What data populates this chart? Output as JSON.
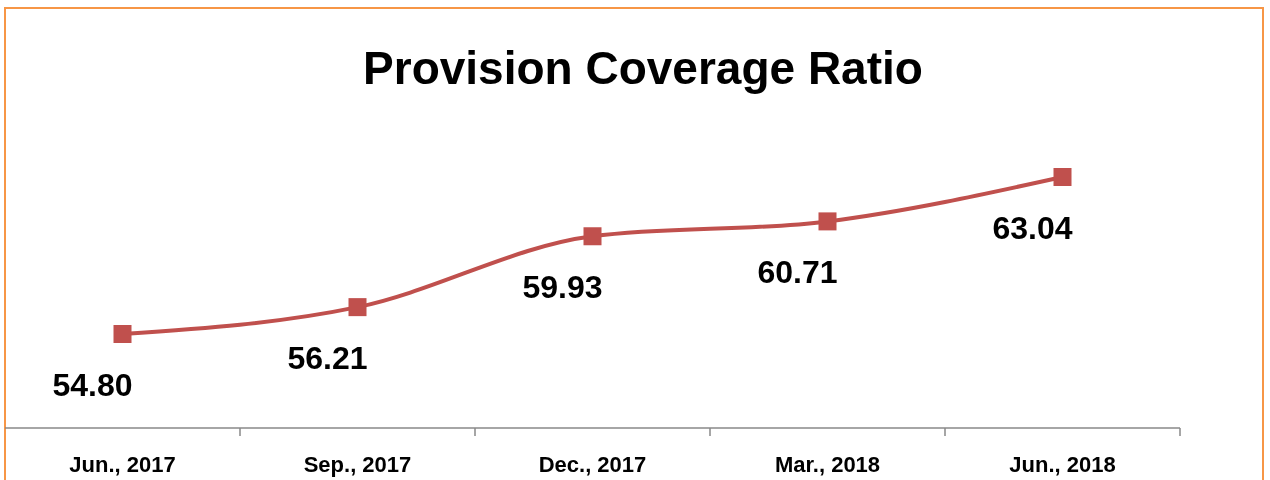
{
  "chart_data": {
    "type": "line",
    "title": "Provision Coverage Ratio",
    "categories": [
      "Jun., 2017",
      "Sep., 2017",
      "Dec., 2017",
      "Mar., 2018",
      "Jun., 2018"
    ],
    "series": [
      {
        "color": "#c0504d",
        "values": [
          54.8,
          56.21,
          59.93,
          60.71,
          63.04
        ],
        "value_labels": [
          "54.80",
          "56.21",
          "59.93",
          "60.71",
          "63.04"
        ]
      }
    ],
    "tick_labels": "x",
    "marker": "square",
    "line_style": "solid"
  }
}
